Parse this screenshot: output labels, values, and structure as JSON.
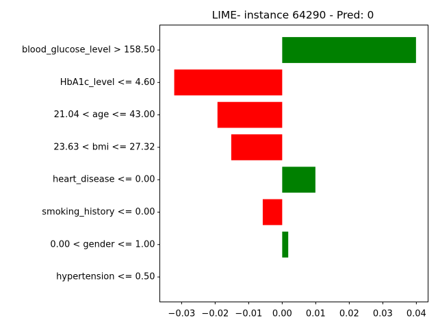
{
  "chart_data": {
    "type": "bar",
    "orientation": "horizontal",
    "title": "LIME- instance 64290 - Pred: 0",
    "xlabel": "",
    "ylabel": "",
    "xlim": [
      -0.0365,
      0.0435
    ],
    "xticks": [
      -0.03,
      -0.02,
      -0.01,
      0.0,
      0.01,
      0.02,
      0.03,
      0.04
    ],
    "xtick_labels": [
      "−0.03",
      "−0.02",
      "−0.01",
      "0.00",
      "0.01",
      "0.02",
      "0.03",
      "0.04"
    ],
    "grid": false,
    "categories": [
      "blood_glucose_level > 158.50",
      "HbA1c_level <= 4.60",
      "21.04 < age <= 43.00",
      "23.63 < bmi <= 27.32",
      "heart_disease <= 0.00",
      "smoking_history <= 0.00",
      "0.00 < gender <= 1.00",
      "hypertension <= 0.50"
    ],
    "values": [
      0.0399,
      -0.0322,
      -0.0193,
      -0.0152,
      0.0099,
      -0.0058,
      0.0018,
      0.0
    ],
    "colors": {
      "positive": "#008000",
      "negative": "#ff0000"
    }
  }
}
